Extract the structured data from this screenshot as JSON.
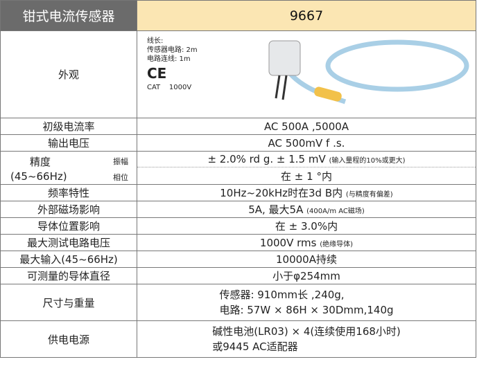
{
  "header": {
    "label": "钳式电流传感器",
    "model": "9667"
  },
  "appearance": {
    "label": "外观",
    "lines": [
      "线长:",
      "传感器电路: 2m",
      "电路连线: 1m"
    ],
    "mark": "CE",
    "cat": "CAT    1000V"
  },
  "rows_top": [
    {
      "label": "初级电流率",
      "value": "AC 500A ,5000A"
    },
    {
      "label": "输出电压",
      "value": "AC 500mV f .s."
    }
  ],
  "accuracy": {
    "label": "精度",
    "range": "(45~66Hz)",
    "amplitude_label": "振幅",
    "phase_label": "相位",
    "amplitude": "± 2.0% rd g. ± 1.5 mV",
    "amplitude_note": "(输入量程的10%或更大)",
    "phase": "在 ± 1 °内"
  },
  "rows": [
    {
      "label": "频率特性",
      "value": "10Hz~20kHz时在3d B内",
      "note": "(与精度有偏差)"
    },
    {
      "label": "外部磁场影响",
      "value": "5A,    最大5A",
      "note": "(400A/m AC磁场)"
    },
    {
      "label": "导体位置影响",
      "value": "在 ± 3.0%内"
    },
    {
      "label": "最大测试电路电压",
      "value": "1000V rms",
      "note": "(绝缘导体)"
    },
    {
      "label": "最大输入(45~66Hz)",
      "value": "10000A持续"
    },
    {
      "label": "可测量的导体直径",
      "value": "小于φ254mm"
    },
    {
      "label": "尺寸与重量",
      "lines": [
        "传感器: 910mm长 ,240g,",
        "电路: 57W × 86H × 30Dmm,140g"
      ]
    },
    {
      "label": "供电电源",
      "lines": [
        "碱性电池(LR03) × 4(连续使用168小时)",
        "或9445 AC适配器"
      ]
    }
  ]
}
